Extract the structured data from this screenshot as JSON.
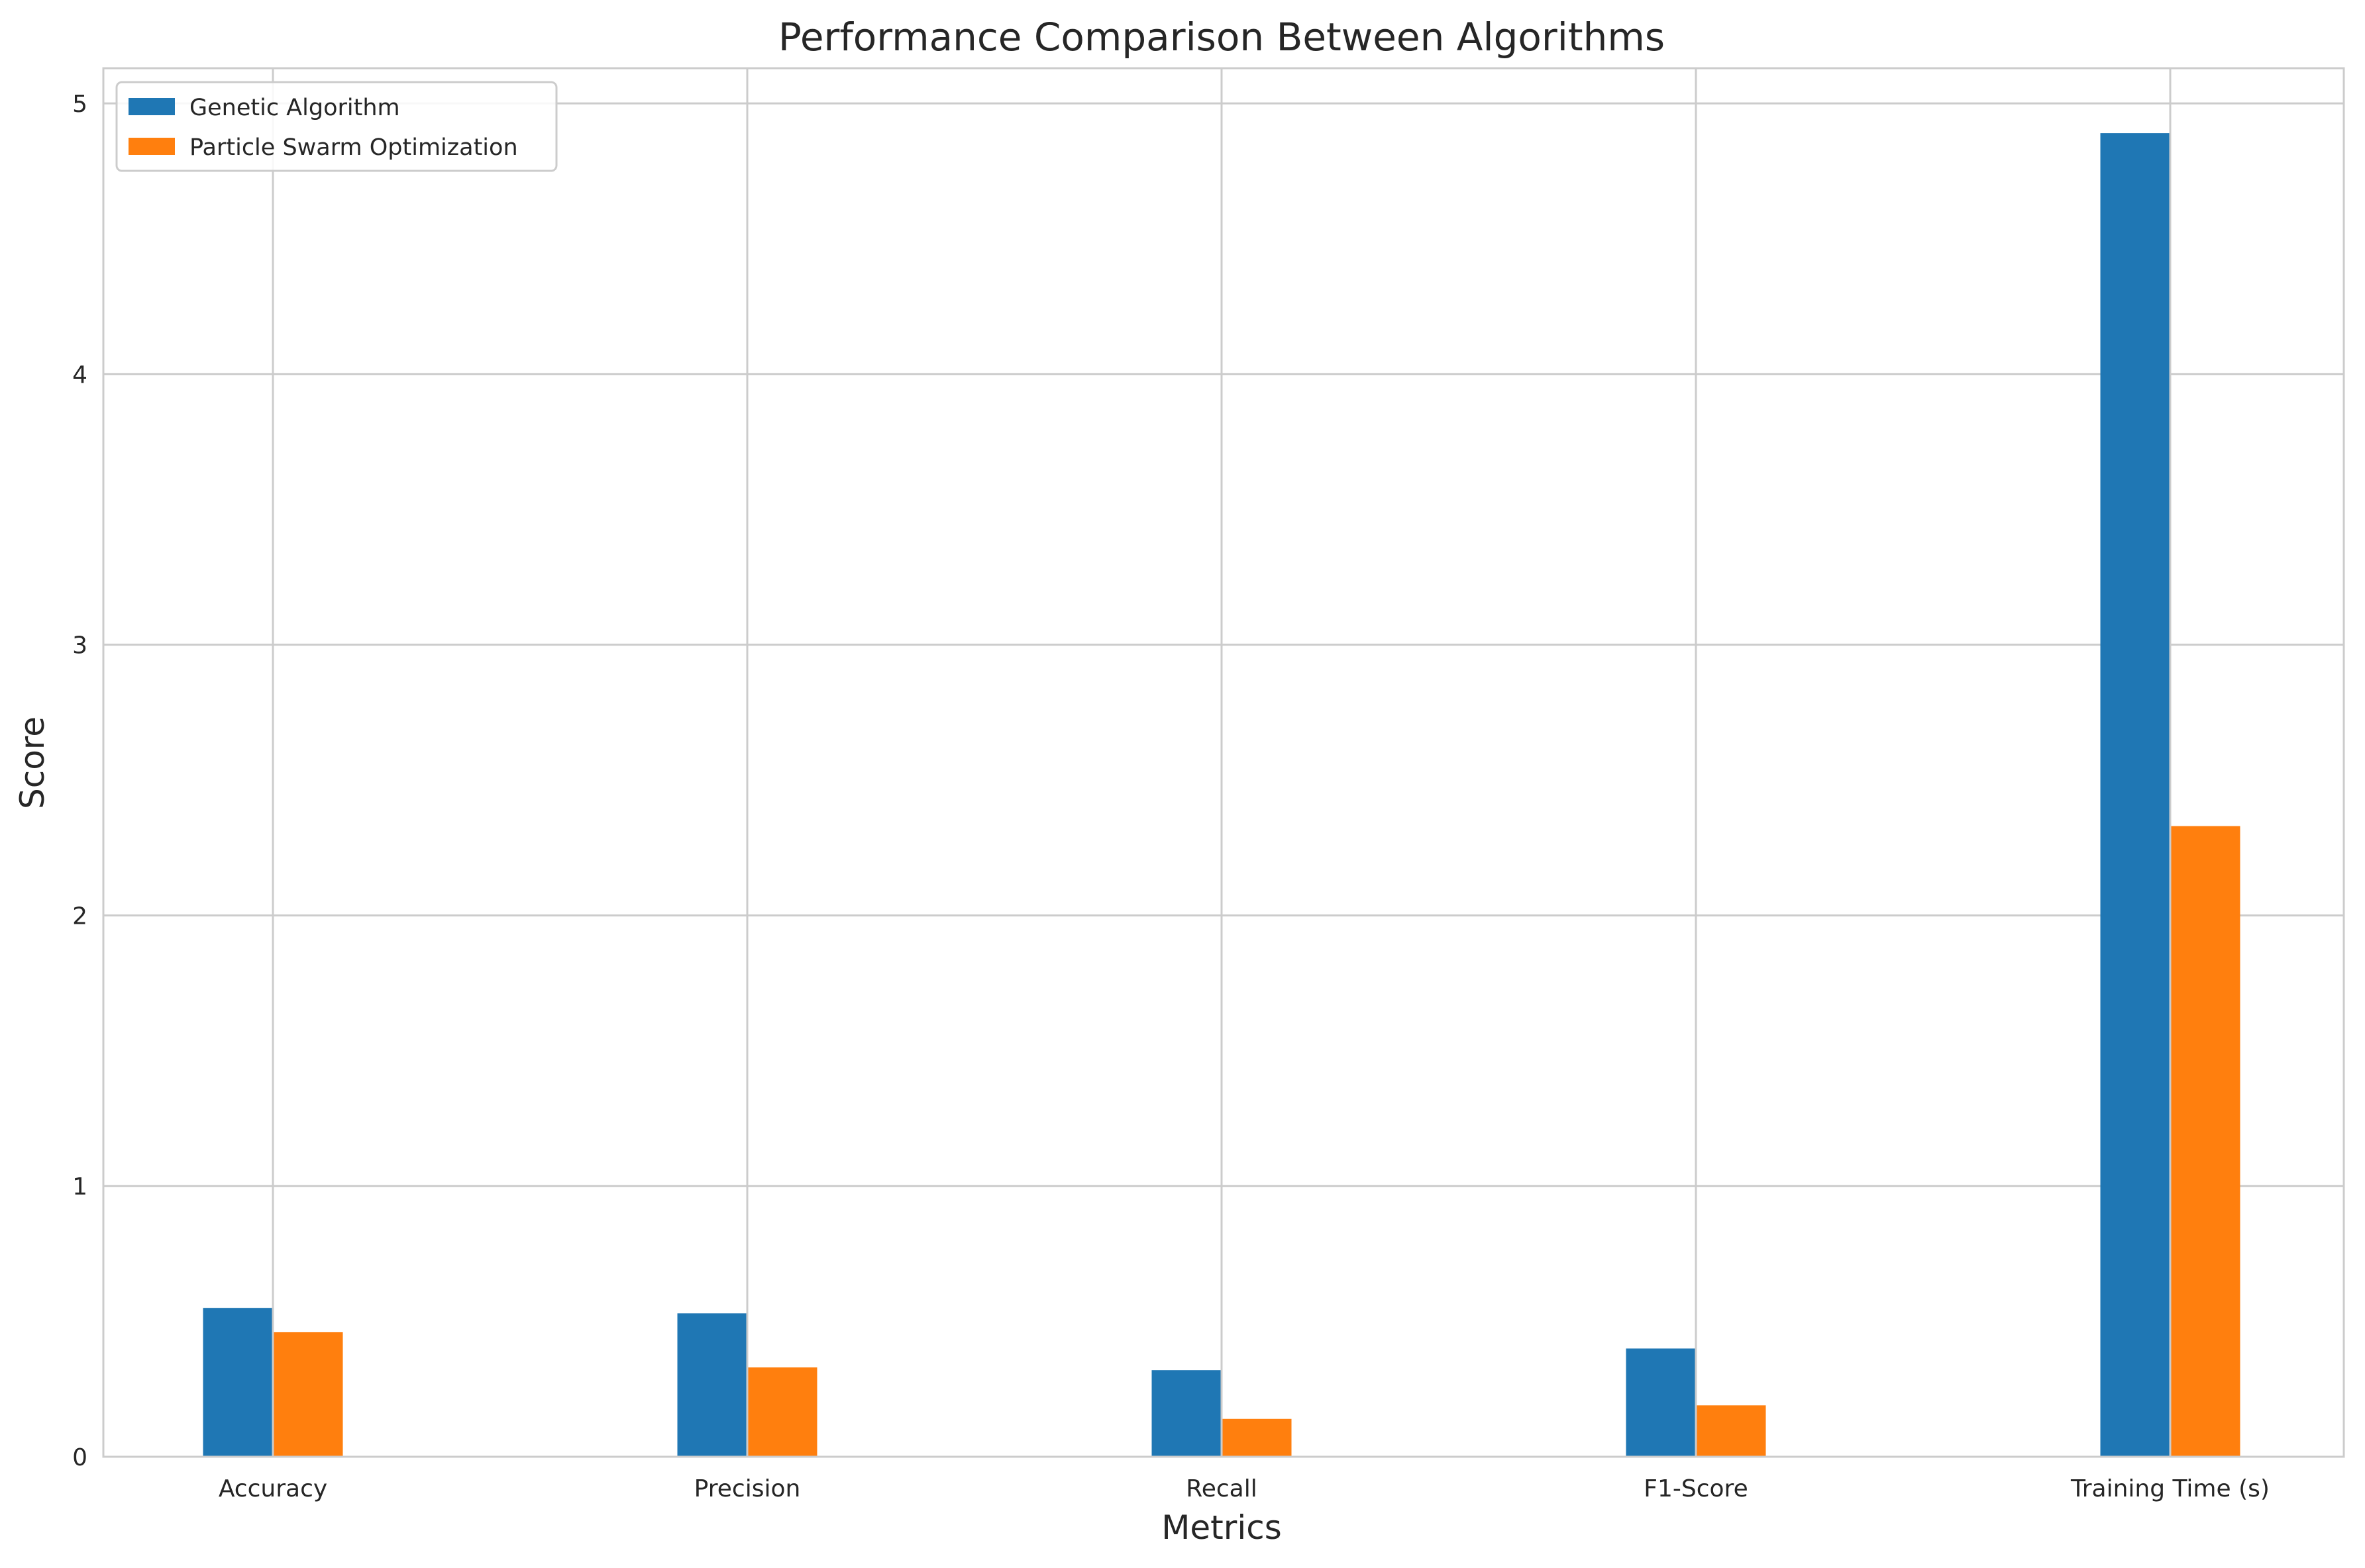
{
  "chart_data": {
    "type": "bar",
    "title": "Performance Comparison Between Algorithms",
    "xlabel": "Metrics",
    "ylabel": "Score",
    "categories": [
      "Accuracy",
      "Precision",
      "Recall",
      "F1-Score",
      "Training Time (s)"
    ],
    "series": [
      {
        "name": "Genetic Algorithm",
        "color": "#1f77b4",
        "values": [
          0.55,
          0.53,
          0.32,
          0.4,
          4.89
        ]
      },
      {
        "name": "Particle Swarm Optimization",
        "color": "#ff7f0e",
        "values": [
          0.46,
          0.33,
          0.14,
          0.19,
          2.33
        ]
      }
    ],
    "ylim": [
      0,
      5.13
    ],
    "yticks": [
      0,
      1,
      2,
      3,
      4,
      5
    ],
    "grid": true,
    "legend_position": "top-left"
  }
}
